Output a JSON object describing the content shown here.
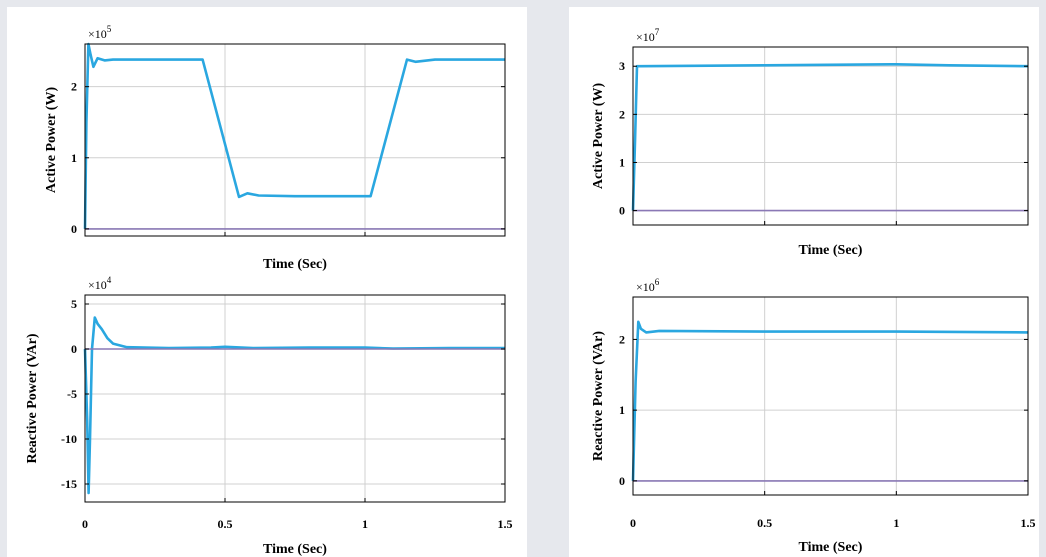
{
  "colors": {
    "series_main": "#2aa7e0",
    "series_ref": "#8a78b5",
    "grid": "#d0d0d0",
    "axes": "#000000"
  },
  "chart_data": [
    {
      "id": "left-top",
      "type": "line",
      "ylabel": "Active Power (W)",
      "xlabel": "Time (Sec)",
      "multiplier": "×10",
      "multiplier_exp": "5",
      "xlim": [
        0,
        1.5
      ],
      "ylim": [
        -0.1,
        2.6
      ],
      "yticks": [
        0,
        1,
        2
      ],
      "ytick_labels": [
        "0",
        "1",
        "2"
      ],
      "xticks": [
        0.5,
        1
      ],
      "xtick_labels": [],
      "series": [
        {
          "role": "main",
          "values": [
            [
              0,
              0
            ],
            [
              0.005,
              1.5
            ],
            [
              0.012,
              2.6
            ],
            [
              0.02,
              2.45
            ],
            [
              0.03,
              2.28
            ],
            [
              0.045,
              2.4
            ],
            [
              0.07,
              2.37
            ],
            [
              0.1,
              2.38
            ],
            [
              0.2,
              2.38
            ],
            [
              0.42,
              2.38
            ],
            [
              0.55,
              0.45
            ],
            [
              0.58,
              0.5
            ],
            [
              0.62,
              0.47
            ],
            [
              0.75,
              0.46
            ],
            [
              1.02,
              0.46
            ],
            [
              1.15,
              2.38
            ],
            [
              1.18,
              2.35
            ],
            [
              1.25,
              2.38
            ],
            [
              1.5,
              2.38
            ]
          ]
        },
        {
          "role": "ref",
          "values": [
            [
              0,
              0
            ],
            [
              1.5,
              0
            ]
          ]
        }
      ]
    },
    {
      "id": "left-bottom",
      "type": "line",
      "ylabel": "Reactive Power (VAr)",
      "xlabel": "Time (Sec)",
      "multiplier": "×10",
      "multiplier_exp": "4",
      "xlim": [
        0,
        1.5
      ],
      "ylim": [
        -17,
        6
      ],
      "yticks": [
        5,
        0,
        -5,
        -10,
        -15
      ],
      "ytick_labels": [
        "5",
        "0",
        "-5",
        "-10",
        "-15"
      ],
      "xticks": [
        0,
        0.5,
        1,
        1.5
      ],
      "xtick_labels": [
        "0",
        "0.5",
        "1",
        "1.5"
      ],
      "series": [
        {
          "role": "main",
          "values": [
            [
              0,
              0
            ],
            [
              0.008,
              -8
            ],
            [
              0.013,
              -16
            ],
            [
              0.018,
              -10
            ],
            [
              0.025,
              0
            ],
            [
              0.035,
              3.5
            ],
            [
              0.045,
              2.8
            ],
            [
              0.06,
              2.2
            ],
            [
              0.08,
              1.2
            ],
            [
              0.1,
              0.6
            ],
            [
              0.15,
              0.2
            ],
            [
              0.3,
              0.1
            ],
            [
              0.45,
              0.15
            ],
            [
              0.5,
              0.25
            ],
            [
              0.6,
              0.1
            ],
            [
              0.8,
              0.15
            ],
            [
              1.0,
              0.15
            ],
            [
              1.1,
              0.05
            ],
            [
              1.3,
              0.1
            ],
            [
              1.5,
              0.1
            ]
          ]
        },
        {
          "role": "ref",
          "values": [
            [
              0,
              0
            ],
            [
              1.5,
              0
            ]
          ]
        }
      ]
    },
    {
      "id": "right-top",
      "type": "line",
      "ylabel": "Active Power (W)",
      "xlabel": "Time (Sec)",
      "multiplier": "×10",
      "multiplier_exp": "7",
      "xlim": [
        0,
        1.5
      ],
      "ylim": [
        -0.3,
        3.4
      ],
      "yticks": [
        0,
        1,
        2,
        3
      ],
      "ytick_labels": [
        "0",
        "1",
        "2",
        "3"
      ],
      "xticks": [
        0.5,
        1
      ],
      "xtick_labels": [],
      "series": [
        {
          "role": "main",
          "values": [
            [
              0,
              0
            ],
            [
              0.008,
              1.5
            ],
            [
              0.015,
              3.0
            ],
            [
              0.03,
              3.0
            ],
            [
              0.5,
              3.02
            ],
            [
              1.0,
              3.04
            ],
            [
              1.2,
              3.02
            ],
            [
              1.5,
              3.0
            ]
          ]
        },
        {
          "role": "ref",
          "values": [
            [
              0,
              0
            ],
            [
              1.5,
              0
            ]
          ]
        }
      ]
    },
    {
      "id": "right-bottom",
      "type": "line",
      "ylabel": "Reactive Power (VAr)",
      "xlabel": "Time (Sec)",
      "multiplier": "×10",
      "multiplier_exp": "6",
      "xlim": [
        0,
        1.5
      ],
      "ylim": [
        -0.2,
        2.6
      ],
      "yticks": [
        0,
        1,
        2
      ],
      "ytick_labels": [
        "0",
        "1",
        "2"
      ],
      "xticks": [
        0,
        0.5,
        1,
        1.5
      ],
      "xtick_labels": [
        "0",
        "0.5",
        "1",
        "1.5"
      ],
      "series": [
        {
          "role": "main",
          "values": [
            [
              0,
              0
            ],
            [
              0.01,
              1.4
            ],
            [
              0.02,
              2.25
            ],
            [
              0.03,
              2.15
            ],
            [
              0.05,
              2.1
            ],
            [
              0.1,
              2.12
            ],
            [
              0.5,
              2.11
            ],
            [
              1.0,
              2.11
            ],
            [
              1.5,
              2.1
            ]
          ]
        },
        {
          "role": "ref",
          "values": [
            [
              0,
              0
            ],
            [
              1.5,
              0
            ]
          ]
        }
      ]
    }
  ]
}
